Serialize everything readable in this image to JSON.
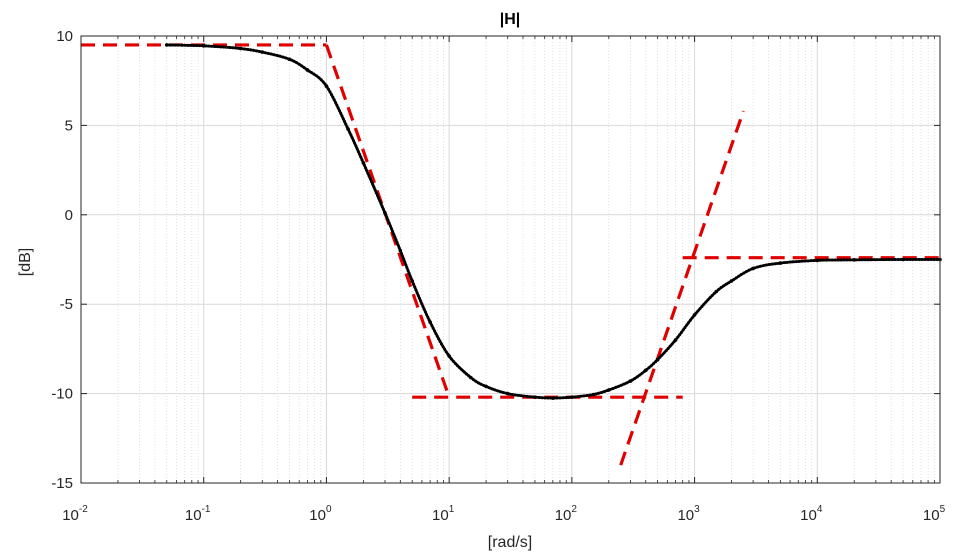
{
  "chart_data": {
    "type": "line",
    "title": "|H|",
    "xlabel": "[rad/s]",
    "ylabel": "[dB]",
    "xscale": "log",
    "xlim": [
      0.01,
      100000
    ],
    "ylim": [
      -15,
      10
    ],
    "x_ticks": [
      {
        "base": "10",
        "exp": "-2",
        "value": 0.01
      },
      {
        "base": "10",
        "exp": "-1",
        "value": 0.1
      },
      {
        "base": "10",
        "exp": "0",
        "value": 1
      },
      {
        "base": "10",
        "exp": "1",
        "value": 10
      },
      {
        "base": "10",
        "exp": "2",
        "value": 100
      },
      {
        "base": "10",
        "exp": "3",
        "value": 1000
      },
      {
        "base": "10",
        "exp": "4",
        "value": 10000
      },
      {
        "base": "10",
        "exp": "5",
        "value": 100000
      }
    ],
    "y_ticks": [
      "10",
      "5",
      "0",
      "-5",
      "-10",
      "-15"
    ],
    "grid": true,
    "minor_grid": true,
    "colors": {
      "response": "#000000",
      "asymptote": "#e00000",
      "grid": "#d9d9d9"
    },
    "series": [
      {
        "style": "black-solid-dotted",
        "x": [
          0.05,
          0.1,
          0.2,
          0.3,
          0.5,
          0.7,
          1,
          1.5,
          2,
          3,
          4,
          5,
          7,
          10,
          15,
          20,
          30,
          50,
          70,
          100,
          150,
          200,
          300,
          400,
          500,
          700,
          1000,
          1500,
          2000,
          3000,
          5000,
          10000,
          20000,
          50000,
          100000
        ],
        "y": [
          9.5,
          9.45,
          9.3,
          9.1,
          8.7,
          8.1,
          7.2,
          4.8,
          2.9,
          0.1,
          -2.0,
          -3.7,
          -6.0,
          -7.9,
          -9.1,
          -9.6,
          -10.0,
          -10.2,
          -10.25,
          -10.2,
          -10.05,
          -9.8,
          -9.3,
          -8.7,
          -8.1,
          -7.0,
          -5.6,
          -4.3,
          -3.7,
          -3.0,
          -2.7,
          -2.55,
          -2.52,
          -2.5,
          -2.5
        ]
      },
      {
        "style": "red-dashed",
        "segments": [
          [
            [
              0.01,
              9.5
            ],
            [
              1,
              9.5
            ]
          ],
          [
            [
              1,
              9.5
            ],
            [
              10,
              -10.2
            ]
          ],
          [
            [
              5,
              -10.2
            ],
            [
              800,
              -10.2
            ]
          ],
          [
            [
              250,
              -14.0
            ],
            [
              2500,
              5.8
            ]
          ],
          [
            [
              800,
              -2.4
            ],
            [
              100000,
              -2.4
            ]
          ]
        ]
      }
    ]
  }
}
